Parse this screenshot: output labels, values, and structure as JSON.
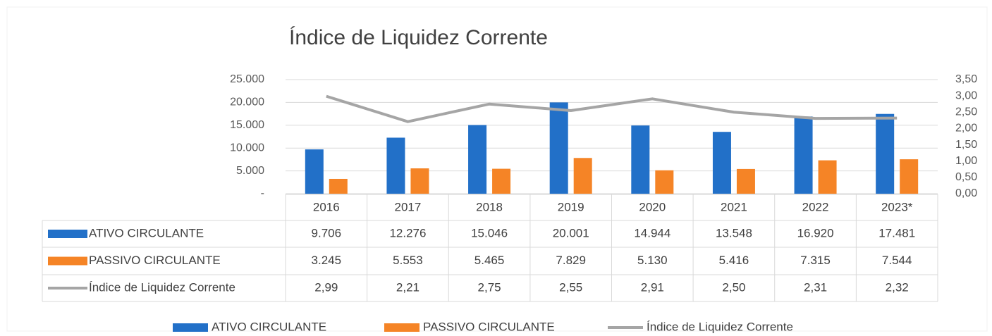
{
  "chart_data": {
    "type": "bar",
    "title": "Índice de Liquidez Corrente",
    "categories": [
      "2016",
      "2017",
      "2018",
      "2019",
      "2020",
      "2021",
      "2022",
      "2023*"
    ],
    "series": [
      {
        "name": "ATIVO CIRCULANTE",
        "type": "bar",
        "color": "#2270c8",
        "values": [
          9706,
          12276,
          15046,
          20001,
          14944,
          13548,
          16920,
          17481
        ],
        "value_labels": [
          "9.706",
          "12.276",
          "15.046",
          "20.001",
          "14.944",
          "13.548",
          "16.920",
          "17.481"
        ]
      },
      {
        "name": "PASSIVO CIRCULANTE",
        "type": "bar",
        "color": "#f58426",
        "values": [
          3245,
          5553,
          5465,
          7829,
          5130,
          5416,
          7315,
          7544
        ],
        "value_labels": [
          "3.245",
          "5.553",
          "5.465",
          "7.829",
          "5.130",
          "5.416",
          "7.315",
          "7.544"
        ]
      },
      {
        "name": "Índice de Liquidez Corrente",
        "type": "line",
        "axis": "y2",
        "color": "#a5a5a5",
        "values": [
          2.99,
          2.21,
          2.75,
          2.55,
          2.91,
          2.5,
          2.31,
          2.32
        ],
        "value_labels": [
          "2,99",
          "2,21",
          "2,75",
          "2,55",
          "2,91",
          "2,50",
          "2,31",
          "2,32"
        ]
      }
    ],
    "ylim": [
      0,
      25000
    ],
    "yticks": [
      {
        "value": 0,
        "label": "-"
      },
      {
        "value": 5000,
        "label": "5.000"
      },
      {
        "value": 10000,
        "label": "10.000"
      },
      {
        "value": 15000,
        "label": "15.000"
      },
      {
        "value": 20000,
        "label": "20.000"
      },
      {
        "value": 25000,
        "label": "25.000"
      }
    ],
    "y2lim": [
      0,
      3.5
    ],
    "y2ticks": [
      {
        "value": 0,
        "label": "0,00"
      },
      {
        "value": 0.5,
        "label": "0,50"
      },
      {
        "value": 1,
        "label": "1,00"
      },
      {
        "value": 1.5,
        "label": "1,50"
      },
      {
        "value": 2,
        "label": "2,00"
      },
      {
        "value": 2.5,
        "label": "2,50"
      },
      {
        "value": 3,
        "label": "3,00"
      },
      {
        "value": 3.5,
        "label": "3,50"
      }
    ],
    "grid": true,
    "legend": "bottom",
    "data_table": true
  }
}
